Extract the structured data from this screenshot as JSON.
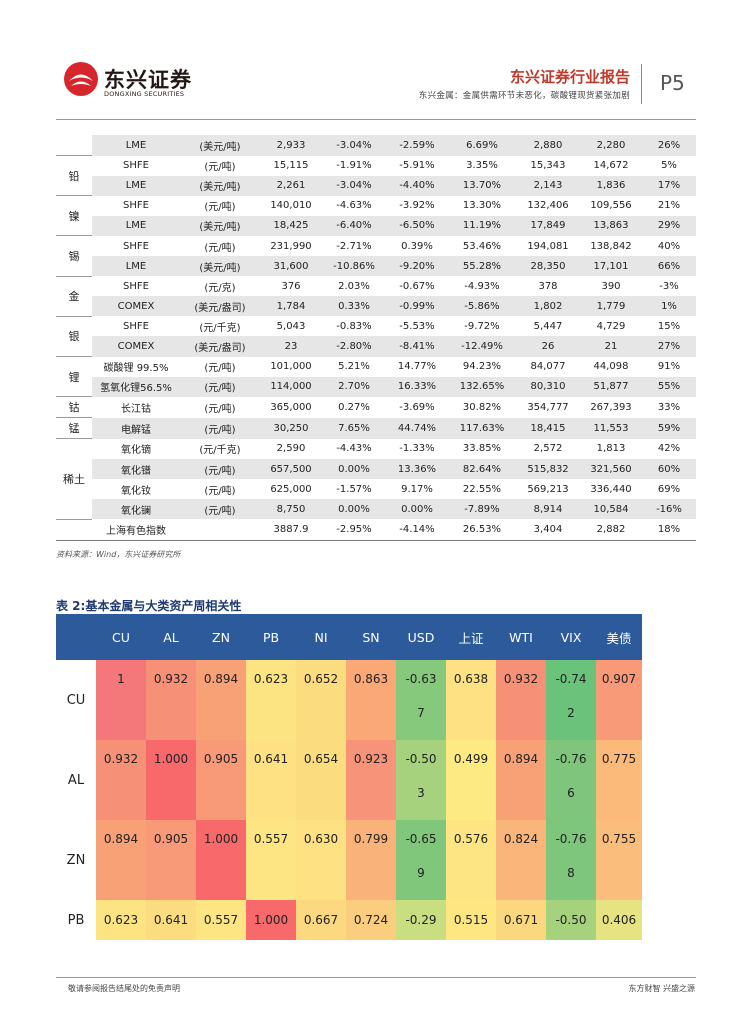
{
  "header": {
    "logo_cn": "东兴证券",
    "logo_en": "DONGXING SECURITIES",
    "report_title": "东兴证券行业报告",
    "report_subtitle": "东兴金属：金属供需环节未恶化，碳酸锂现货紧张加剧",
    "page_label": "P5"
  },
  "table1": {
    "rows": [
      {
        "group": "",
        "exchange": "LME",
        "unit": "(美元/吨)",
        "price": "2,933",
        "c1": "-3.04%",
        "c2": "-2.59%",
        "c3": "6.69%",
        "high": "2,880",
        "low": "2,280",
        "pct": "26%"
      },
      {
        "group": "铅",
        "exchange": "SHFE",
        "unit": "(元/吨)",
        "price": "15,115",
        "c1": "-1.91%",
        "c2": "-5.91%",
        "c3": "3.35%",
        "high": "15,343",
        "low": "14,672",
        "pct": "5%"
      },
      {
        "group": "",
        "exchange": "LME",
        "unit": "(美元/吨)",
        "price": "2,261",
        "c1": "-3.04%",
        "c2": "-4.40%",
        "c3": "13.70%",
        "high": "2,143",
        "low": "1,836",
        "pct": "17%"
      },
      {
        "group": "镍",
        "exchange": "SHFE",
        "unit": "(元/吨)",
        "price": "140,010",
        "c1": "-4.63%",
        "c2": "-3.92%",
        "c3": "13.30%",
        "high": "132,406",
        "low": "109,556",
        "pct": "21%"
      },
      {
        "group": "",
        "exchange": "LME",
        "unit": "(美元/吨)",
        "price": "18,425",
        "c1": "-6.40%",
        "c2": "-6.50%",
        "c3": "11.19%",
        "high": "17,849",
        "low": "13,863",
        "pct": "29%"
      },
      {
        "group": "锡",
        "exchange": "SHFE",
        "unit": "(元/吨)",
        "price": "231,990",
        "c1": "-2.71%",
        "c2": "0.39%",
        "c3": "53.46%",
        "high": "194,081",
        "low": "138,842",
        "pct": "40%"
      },
      {
        "group": "",
        "exchange": "LME",
        "unit": "(美元/吨)",
        "price": "31,600",
        "c1": "-10.86%",
        "c2": "-9.20%",
        "c3": "55.28%",
        "high": "28,350",
        "low": "17,101",
        "pct": "66%"
      },
      {
        "group": "金",
        "exchange": "SHFE",
        "unit": "(元/克)",
        "price": "376",
        "c1": "2.03%",
        "c2": "-0.67%",
        "c3": "-4.93%",
        "high": "378",
        "low": "390",
        "pct": "-3%"
      },
      {
        "group": "",
        "exchange": "COMEX",
        "unit": "(美元/盎司)",
        "price": "1,784",
        "c1": "0.33%",
        "c2": "-0.99%",
        "c3": "-5.86%",
        "high": "1,802",
        "low": "1,779",
        "pct": "1%"
      },
      {
        "group": "银",
        "exchange": "SHFE",
        "unit": "(元/千克)",
        "price": "5,043",
        "c1": "-0.83%",
        "c2": "-5.53%",
        "c3": "-9.72%",
        "high": "5,447",
        "low": "4,729",
        "pct": "15%"
      },
      {
        "group": "",
        "exchange": "COMEX",
        "unit": "(美元/盎司)",
        "price": "23",
        "c1": "-2.80%",
        "c2": "-8.41%",
        "c3": "-12.49%",
        "high": "26",
        "low": "21",
        "pct": "27%"
      },
      {
        "group": "锂",
        "exchange": "碳酸锂 99.5%",
        "unit": "(元/吨)",
        "price": "101,000",
        "c1": "5.21%",
        "c2": "14.77%",
        "c3": "94.23%",
        "high": "84,077",
        "low": "44,098",
        "pct": "91%"
      },
      {
        "group": "",
        "exchange": "氢氧化锂56.5%",
        "unit": "(元/吨)",
        "price": "114,000",
        "c1": "2.70%",
        "c2": "16.33%",
        "c3": "132.65%",
        "high": "80,310",
        "low": "51,877",
        "pct": "55%"
      },
      {
        "group": "钴",
        "exchange": "长江钴",
        "unit": "(元/吨)",
        "price": "365,000",
        "c1": "0.27%",
        "c2": "-3.69%",
        "c3": "30.82%",
        "high": "354,777",
        "low": "267,393",
        "pct": "33%"
      },
      {
        "group": "锰",
        "exchange": "电解锰",
        "unit": "(元/吨)",
        "price": "30,250",
        "c1": "7.65%",
        "c2": "44.74%",
        "c3": "117.63%",
        "high": "18,415",
        "low": "11,553",
        "pct": "59%"
      },
      {
        "group": "稀土",
        "exchange": "氧化镝",
        "unit": "(元/千克)",
        "price": "2,590",
        "c1": "-4.43%",
        "c2": "-1.33%",
        "c3": "33.85%",
        "high": "2,572",
        "low": "1,813",
        "pct": "42%"
      },
      {
        "group": "",
        "exchange": "氧化镨",
        "unit": "(元/吨)",
        "price": "657,500",
        "c1": "0.00%",
        "c2": "13.36%",
        "c3": "82.64%",
        "high": "515,832",
        "low": "321,560",
        "pct": "60%"
      },
      {
        "group": "",
        "exchange": "氧化钕",
        "unit": "(元/吨)",
        "price": "625,000",
        "c1": "-1.57%",
        "c2": "9.17%",
        "c3": "22.55%",
        "high": "569,213",
        "low": "336,440",
        "pct": "69%"
      },
      {
        "group": "",
        "exchange": "氧化镧",
        "unit": "(元/吨)",
        "price": "8,750",
        "c1": "0.00%",
        "c2": "0.00%",
        "c3": "-7.89%",
        "high": "8,914",
        "low": "10,584",
        "pct": "-16%"
      },
      {
        "group": "",
        "exchange": "上海有色指数",
        "unit": "",
        "price": "3887.9",
        "c1": "-2.95%",
        "c2": "-4.14%",
        "c3": "26.53%",
        "high": "3,404",
        "low": "2,882",
        "pct": "18%"
      }
    ],
    "source": "资料来源：Wind，东兴证券研究所"
  },
  "table2": {
    "title": "表 2:基本金属与大类资产周相关性",
    "headers": [
      "CU",
      "AL",
      "ZN",
      "PB",
      "NI",
      "SN",
      "USD",
      "上证",
      "WTI",
      "VIX",
      "美债"
    ],
    "rows": [
      {
        "label": "CU",
        "cells": [
          [
            "1"
          ],
          [
            "0.932"
          ],
          [
            "0.894"
          ],
          [
            "0.623"
          ],
          [
            "0.652"
          ],
          [
            "0.863"
          ],
          [
            "-0.63",
            "7"
          ],
          [
            "0.638"
          ],
          [
            "0.932"
          ],
          [
            "-0.74",
            "2"
          ],
          [
            "0.907"
          ]
        ]
      },
      {
        "label": "AL",
        "cells": [
          [
            "0.932"
          ],
          [
            "1.000"
          ],
          [
            "0.905"
          ],
          [
            "0.641"
          ],
          [
            "0.654"
          ],
          [
            "0.923"
          ],
          [
            "-0.50",
            "3"
          ],
          [
            "0.499"
          ],
          [
            "0.894"
          ],
          [
            "-0.76",
            "6"
          ],
          [
            "0.775"
          ]
        ]
      },
      {
        "label": "ZN",
        "cells": [
          [
            "0.894"
          ],
          [
            "0.905"
          ],
          [
            "1.000"
          ],
          [
            "0.557"
          ],
          [
            "0.630"
          ],
          [
            "0.799"
          ],
          [
            "-0.65",
            "9"
          ],
          [
            "0.576"
          ],
          [
            "0.824"
          ],
          [
            "-0.76",
            "8"
          ],
          [
            "0.755"
          ]
        ]
      },
      {
        "label": "PB",
        "cells": [
          [
            "0.623"
          ],
          [
            "0.641"
          ],
          [
            "0.557"
          ],
          [
            "1.000"
          ],
          [
            "0.667"
          ],
          [
            "0.724"
          ],
          [
            "-0.29"
          ],
          [
            "0.515"
          ],
          [
            "0.671"
          ],
          [
            "-0.50"
          ],
          [
            "0.406"
          ]
        ]
      }
    ],
    "colors": [
      [
        "#f4787a",
        "#f69178",
        "#f8a076",
        "#fbe481",
        "#fbdd7f",
        "#fba877",
        "#87c97c",
        "#fde182",
        "#f69178",
        "#6ac27b",
        "#f89a77"
      ],
      [
        "#f69178",
        "#f8696b",
        "#f89a77",
        "#fde182",
        "#fbdd7f",
        "#f69378",
        "#a6d27e",
        "#fdea83",
        "#f8a076",
        "#7fc67c",
        "#fbb97a"
      ],
      [
        "#f8a076",
        "#f89a77",
        "#f8696b",
        "#fde583",
        "#fde182",
        "#f9b279",
        "#80c77c",
        "#fde583",
        "#f9b57a",
        "#7dc67c",
        "#fbbd7b"
      ],
      [
        "#fbe481",
        "#fbdd7f",
        "#fde583",
        "#f8696b",
        "#fcd881",
        "#fbcd7e",
        "#c9dd81",
        "#fee683",
        "#fbd77f",
        "#a6d27e",
        "#e6e383"
      ]
    ]
  },
  "footer": {
    "left": "敬请参阅报告结尾处的免责声明",
    "right": "东方财智  兴盛之源"
  }
}
